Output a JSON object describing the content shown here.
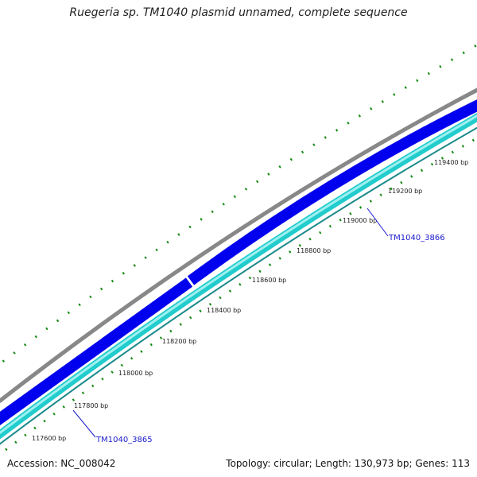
{
  "header": {
    "title": "Ruegeria sp. TM1040 plasmid unnamed, complete sequence"
  },
  "footer": {
    "accession": "Accession: NC_008042",
    "summary": "Topology: circular; Length: 130,973 bp; Genes: 113"
  },
  "map": {
    "ticks": [
      "117600 bp",
      "117800 bp",
      "118000 bp",
      "118200 bp",
      "118400 bp",
      "118600 bp",
      "118800 bp",
      "119000 bp",
      "119200 bp",
      "119400 bp"
    ],
    "genes": [
      "TM1040_3866",
      "TM1040_3865"
    ],
    "colors": {
      "backbone": "#888888",
      "cds": "#0000ee",
      "gene": "#22cccc",
      "gc_skew": "#138a13",
      "label_line": "#1a1acc"
    }
  }
}
